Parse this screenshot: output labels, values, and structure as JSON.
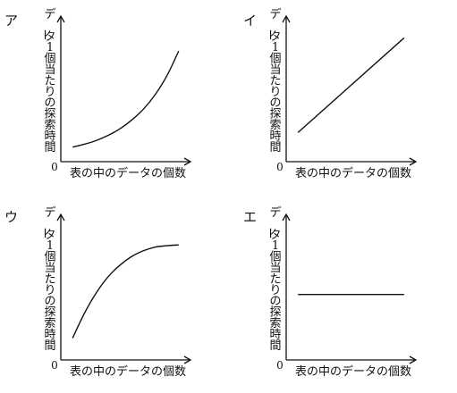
{
  "chart_data": [
    {
      "type": "line",
      "panel_label": "ア",
      "xlabel": "表の中のデータの個数",
      "ylabel": "データ1個当たりの探索時間",
      "origin_label": "0",
      "series": [
        {
          "x": [
            1,
            2,
            3,
            4,
            5,
            6,
            7,
            8,
            9,
            10
          ],
          "y": [
            1.0,
            1.2,
            1.45,
            1.8,
            2.25,
            2.85,
            3.6,
            4.6,
            5.9,
            7.6
          ]
        }
      ]
    },
    {
      "type": "line",
      "panel_label": "イ",
      "xlabel": "表の中のデータの個数",
      "ylabel": "データ1個当たりの探索時間",
      "origin_label": "0",
      "series": [
        {
          "x": [
            1,
            10
          ],
          "y": [
            2.0,
            8.5
          ]
        }
      ]
    },
    {
      "type": "line",
      "panel_label": "ウ",
      "xlabel": "表の中のデータの個数",
      "ylabel": "データ1個当たりの探索時間",
      "origin_label": "0",
      "series": [
        {
          "x": [
            1,
            2,
            3,
            4,
            5,
            6,
            7,
            8,
            9,
            10
          ],
          "y": [
            1.5,
            3.2,
            4.6,
            5.7,
            6.5,
            7.1,
            7.5,
            7.75,
            7.85,
            7.9
          ]
        }
      ]
    },
    {
      "type": "line",
      "panel_label": "エ",
      "xlabel": "表の中のデータの個数",
      "ylabel": "データ1個当たりの探索時間",
      "origin_label": "0",
      "series": [
        {
          "x": [
            1,
            10
          ],
          "y": [
            4.5,
            4.5
          ]
        }
      ]
    }
  ]
}
